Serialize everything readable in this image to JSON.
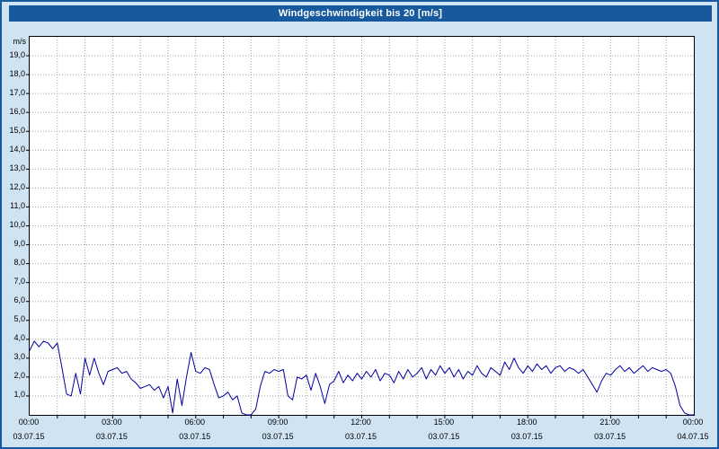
{
  "window": {
    "title": "Windgeschwindigkeit bis 20 [m/s]"
  },
  "y_axis": {
    "unit": "m/s",
    "labels": [
      "1,0",
      "2,0",
      "3,0",
      "4,0",
      "5,0",
      "6,0",
      "7,0",
      "8,0",
      "9,0",
      "10,0",
      "11,0",
      "12,0",
      "13,0",
      "14,0",
      "15,0",
      "16,0",
      "17,0",
      "18,0",
      "19,0"
    ]
  },
  "x_axis": {
    "ticks": [
      {
        "time": "00:00",
        "date": "03.07.15"
      },
      {
        "time": "03:00",
        "date": "03.07.15"
      },
      {
        "time": "06:00",
        "date": "03.07.15"
      },
      {
        "time": "09:00",
        "date": "03.07.15"
      },
      {
        "time": "12:00",
        "date": "03.07.15"
      },
      {
        "time": "15:00",
        "date": "03.07.15"
      },
      {
        "time": "18:00",
        "date": "03.07.15"
      },
      {
        "time": "21:00",
        "date": "03.07.15"
      },
      {
        "time": "00:00",
        "date": "04.07.15"
      }
    ]
  },
  "colors": {
    "background": "#cfe3f2",
    "title_bar": "#17599d",
    "plot_background": "#ffffff",
    "grid": "#a0a0a0",
    "line": "#0000a0"
  },
  "chart_data": {
    "type": "line",
    "title": "Windgeschwindigkeit bis 20 [m/s]",
    "xlabel": "",
    "ylabel": "m/s",
    "ylim": [
      0,
      20
    ],
    "x_hours_range": [
      0,
      24
    ],
    "grid": "dotted; horizontal every 1 m/s, vertical every 1 h",
    "legend": "none",
    "start": "03.07.15 00:00",
    "end": "04.07.15 00:00",
    "interval_minutes": 10,
    "values_10min": [
      3.4,
      3.9,
      3.6,
      3.9,
      3.8,
      3.5,
      3.8,
      2.5,
      1.1,
      1.0,
      2.2,
      1.1,
      3.0,
      2.1,
      3.0,
      2.2,
      1.6,
      2.3,
      2.4,
      2.5,
      2.2,
      2.3,
      1.9,
      1.7,
      1.4,
      1.5,
      1.6,
      1.3,
      1.5,
      0.9,
      1.5,
      0.1,
      1.9,
      0.5,
      2.0,
      3.3,
      2.3,
      2.2,
      2.5,
      2.4,
      1.6,
      0.9,
      1.0,
      1.2,
      0.8,
      1.0,
      0.1,
      0.0,
      0.0,
      0.3,
      1.5,
      2.3,
      2.2,
      2.4,
      2.3,
      2.4,
      1.0,
      0.8,
      2.0,
      1.9,
      2.1,
      1.3,
      2.2,
      1.5,
      0.6,
      1.6,
      1.8,
      2.3,
      1.7,
      2.1,
      1.8,
      2.2,
      1.9,
      2.3,
      2.0,
      2.4,
      1.8,
      2.2,
      2.1,
      1.7,
      2.3,
      1.9,
      2.4,
      2.0,
      2.2,
      2.5,
      1.9,
      2.4,
      2.1,
      2.6,
      2.2,
      2.5,
      2.0,
      2.4,
      1.9,
      2.3,
      2.1,
      2.6,
      2.2,
      2.0,
      2.5,
      2.3,
      2.1,
      2.8,
      2.4,
      3.0,
      2.5,
      2.2,
      2.6,
      2.3,
      2.7,
      2.4,
      2.6,
      2.2,
      2.5,
      2.6,
      2.3,
      2.5,
      2.4,
      2.2,
      2.4,
      2.0,
      1.6,
      1.2,
      1.8,
      2.2,
      2.1,
      2.4,
      2.6,
      2.3,
      2.5,
      2.2,
      2.4,
      2.6,
      2.3,
      2.5,
      2.4,
      2.3,
      2.4,
      2.2,
      1.5,
      0.5,
      0.1,
      0.0,
      0.0
    ]
  }
}
